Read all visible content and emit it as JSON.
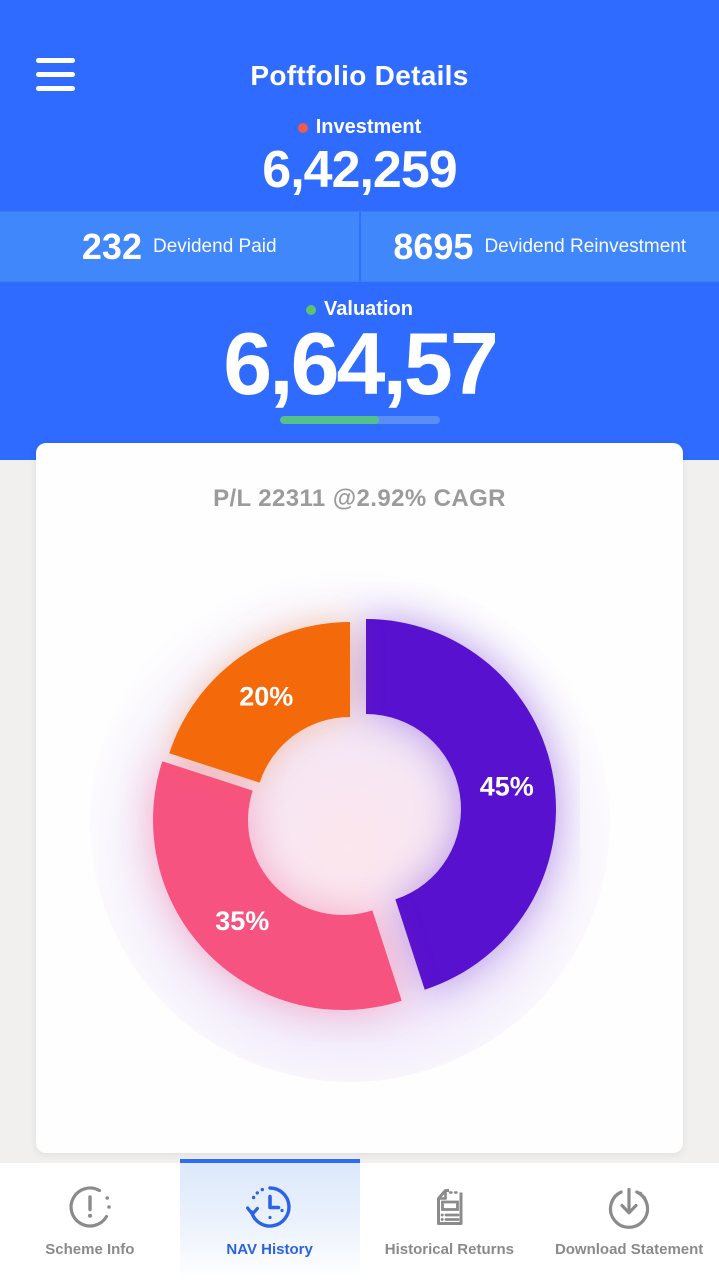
{
  "app": {
    "title": "Poftfolio Details"
  },
  "summary": {
    "investment": {
      "label": "Investment",
      "value": "6,42,259",
      "dot_color": "#f2594f"
    },
    "dividend_paid": {
      "value": "232",
      "label": "Devidend Paid"
    },
    "dividend_reinvestment": {
      "value": "8695",
      "label": "Devidend Reinvestment"
    },
    "valuation": {
      "label": "Valuation",
      "value": "6,64,57",
      "dot_color": "#5fc06f",
      "progress_percent": 62
    }
  },
  "card": {
    "pl_summary": "P/L 22311 @2.92% CAGR"
  },
  "chart_data": {
    "type": "pie",
    "subtype": "donut",
    "title": "P/L 22311 @2.92% CAGR",
    "labels": [
      "45%",
      "35%",
      "20%"
    ],
    "values": [
      45,
      35,
      20
    ],
    "colors": [
      "#5711cf",
      "#f75381",
      "#f4690a"
    ],
    "exploded_slice_index": 0,
    "legend": "none",
    "data_labels": "inside"
  },
  "nav": {
    "active": "NAV History",
    "items": [
      {
        "label": "Scheme Info",
        "icon": "info-icon",
        "active": false
      },
      {
        "label": "NAV History",
        "icon": "history-clock-icon",
        "active": true
      },
      {
        "label": "Historical Returns",
        "icon": "document-icon",
        "active": false
      },
      {
        "label": "Download Statement",
        "icon": "download-icon",
        "active": false
      }
    ]
  },
  "colors": {
    "header_blue": "#2e6bfe",
    "stats_row_blue": "#4087fb",
    "active_tab_blue": "#2b63e0",
    "progress_green": "#54c08a",
    "progress_track_blue": "#5c8cf6",
    "muted_text": "#9b9b9b"
  }
}
